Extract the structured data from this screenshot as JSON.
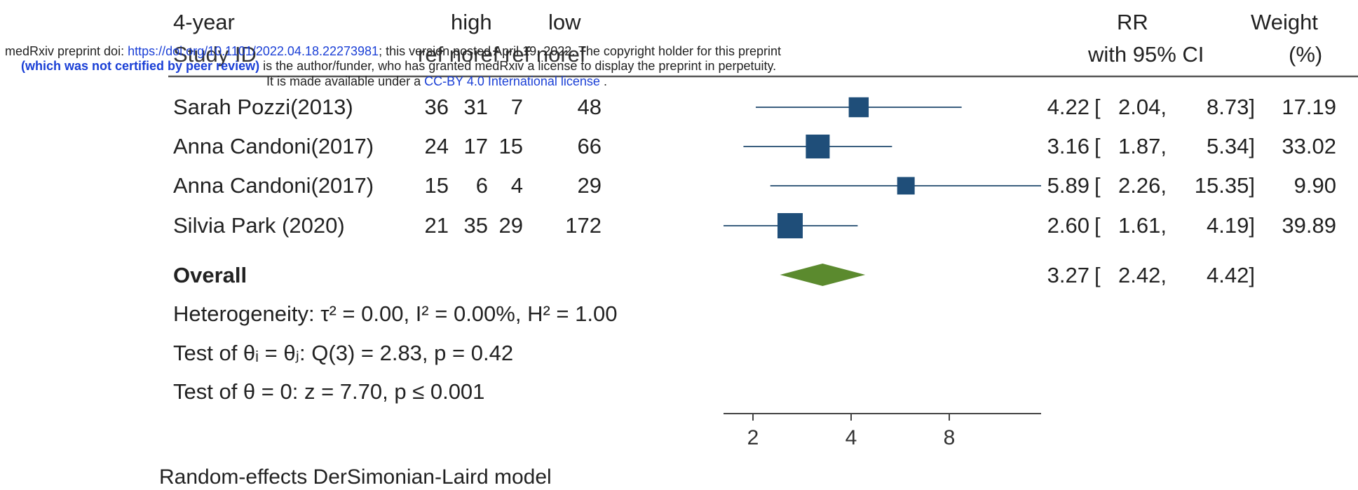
{
  "banner": {
    "line1_prefix": "medRxiv preprint doi: ",
    "line1_link": "https://doi.org/10.1101/2022.04.18.22273981",
    "line1_suffix": "; this version posted April 19, 2022. The copyright holder for this preprint",
    "line2_bold": "(which was not certified by peer review)",
    "line2_rest": " is the author/funder, who has granted medRxiv a license to display the preprint in perpetuity.",
    "line3_prefix": "It is made available under a ",
    "line3_link": "CC-BY 4.0 International license",
    "line3_suffix": " ."
  },
  "header": {
    "group": "4-year",
    "high": "high",
    "low": "low",
    "study_id": "Study ID",
    "cols_ref": "ref  noref  ref  noref",
    "rr": "RR",
    "ci": "with 95% CI",
    "weight": "Weight",
    "weight_unit": "(%)"
  },
  "chart_data": {
    "type": "forest",
    "x_scale": "log",
    "x_ticks": [
      2,
      4,
      8
    ],
    "x_tick_labels": [
      "2",
      "4",
      "8"
    ],
    "xlim": [
      1.5,
      12.0
    ],
    "colors": {
      "box": "#1f4e79",
      "line": "#3b5f7f",
      "diamond": "#5b8a2e",
      "axis": "#444444"
    },
    "studies": [
      {
        "name": "Sarah Pozzi(2013)",
        "high_ref": "36",
        "high_noref": "31",
        "low_ref": "7",
        "low_noref": "48",
        "rr": 4.22,
        "lo": 2.04,
        "hi": 8.73,
        "weight": 17.19,
        "rr_text": "4.22",
        "lo_text": "2.04,",
        "hi_text": "8.73]",
        "weight_text": "17.19"
      },
      {
        "name": "Anna Candoni(2017)",
        "high_ref": "24",
        "high_noref": "17",
        "low_ref": "15",
        "low_noref": "66",
        "rr": 3.16,
        "lo": 1.87,
        "hi": 5.34,
        "weight": 33.02,
        "rr_text": "3.16",
        "lo_text": "1.87,",
        "hi_text": "5.34]",
        "weight_text": "33.02"
      },
      {
        "name": "Anna Candoni(2017)",
        "high_ref": "15",
        "high_noref": "6",
        "low_ref": "4",
        "low_noref": "29",
        "rr": 5.89,
        "lo": 2.26,
        "hi": 15.35,
        "weight": 9.9,
        "rr_text": "5.89",
        "lo_text": "2.26,",
        "hi_text": "15.35]",
        "weight_text": "9.90",
        "arrow_right": true
      },
      {
        "name": "Silvia Park (2020)",
        "high_ref": "21",
        "high_noref": "35",
        "low_ref": "29",
        "low_noref": "172",
        "rr": 2.6,
        "lo": 1.61,
        "hi": 4.19,
        "weight": 39.89,
        "rr_text": "2.60",
        "lo_text": "1.61,",
        "hi_text": "4.19]",
        "weight_text": "39.89"
      }
    ],
    "overall": {
      "label": "Overall",
      "rr": 3.27,
      "lo": 2.42,
      "hi": 4.42,
      "rr_text": "3.27",
      "lo_text": "2.42,",
      "hi_text": "4.42]"
    },
    "bracket_open": "[",
    "heterogeneity": "Heterogeneity: τ² = 0.00, I² = 0.00%, H² = 1.00",
    "test_theta_ij": "Test of θᵢ = θⱼ: Q(3) = 2.83, p = 0.42",
    "test_theta_zero": "Test of θ = 0: z = 7.70, p ≤ 0.001",
    "model_note": "Random-effects DerSimonian-Laird model"
  }
}
